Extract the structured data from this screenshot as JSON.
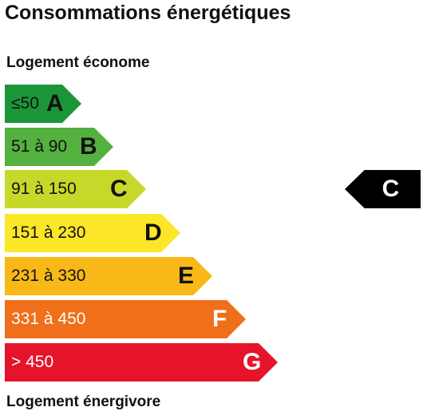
{
  "title": "Consommations énergétiques",
  "label_top": "Logement économe",
  "label_bottom": "Logement énergivore",
  "classes": [
    {
      "range": "≤50",
      "letter": "A",
      "color": "#1a9638"
    },
    {
      "range": "51 à 90",
      "letter": "B",
      "color": "#54b03f"
    },
    {
      "range": "91 à 150",
      "letter": "C",
      "color": "#c6d92a"
    },
    {
      "range": "151 à 230",
      "letter": "D",
      "color": "#fbe628"
    },
    {
      "range": "231 à 330",
      "letter": "E",
      "color": "#f8b817"
    },
    {
      "range": "331 à 450",
      "letter": "F",
      "color": "#ef6f1b"
    },
    {
      "range": "> 450",
      "letter": "G",
      "color": "#e5142a"
    }
  ],
  "current": {
    "letter": "C",
    "color": "#000000"
  }
}
